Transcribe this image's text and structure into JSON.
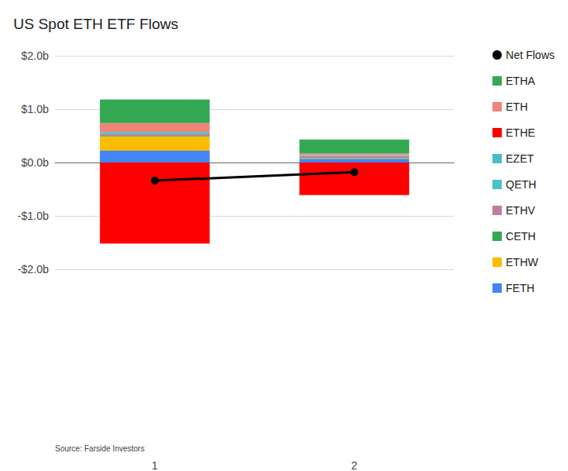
{
  "chart_data": {
    "type": "bar",
    "title": "US Spot ETH ETF Flows",
    "annotations": [
      "Source: Farside Investors"
    ],
    "categories": [
      "1",
      "2"
    ],
    "stacked": true,
    "grid": true,
    "legend": "top-right",
    "ylim": [
      -2,
      2
    ],
    "yticks": [
      {
        "value": -2,
        "label": "-$2.0b"
      },
      {
        "value": -1,
        "label": "-$1.0b"
      },
      {
        "value": 0,
        "label": "$0.0b"
      },
      {
        "value": 1,
        "label": "$1.0b"
      },
      {
        "value": 2,
        "label": "$2.0b"
      }
    ],
    "series": [
      {
        "name": "Net Flows",
        "type": "line",
        "marker": "circle",
        "color": "#000000",
        "values": [
          -0.34,
          -0.18
        ]
      },
      {
        "name": "ETHA",
        "color": "#34a853",
        "values": [
          0.44,
          0.26
        ]
      },
      {
        "name": "ETH",
        "color": "#f08478",
        "values": [
          0.17,
          0.03
        ]
      },
      {
        "name": "ETHE",
        "color": "#ff0000",
        "values": [
          -1.52,
          -0.61
        ]
      },
      {
        "name": "EZET",
        "color": "#46bdc6",
        "values": [
          0.03,
          0.01
        ]
      },
      {
        "name": "QETH",
        "color": "#4bc0c9",
        "values": [
          0.01,
          0.01
        ]
      },
      {
        "name": "ETHV",
        "color": "#c27ba0",
        "values": [
          0.03,
          0.03
        ]
      },
      {
        "name": "CETH",
        "color": "#34a853",
        "values": [
          0.01,
          0.01
        ]
      },
      {
        "name": "ETHW",
        "color": "#fbbc04",
        "values": [
          0.27,
          0.01
        ]
      },
      {
        "name": "FETH",
        "color": "#4285f4",
        "values": [
          0.22,
          0.07
        ]
      }
    ]
  }
}
